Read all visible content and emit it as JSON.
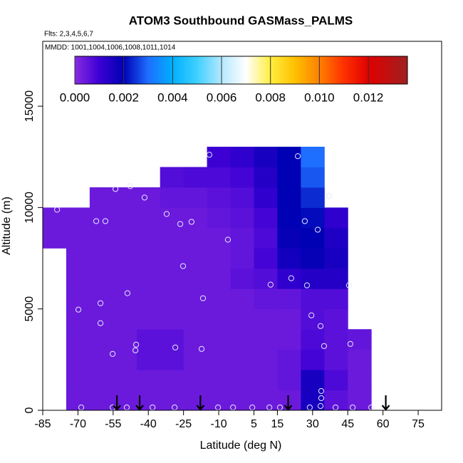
{
  "chart_data": {
    "type": "curtain",
    "title": "ATOM3 Southbound GASMass_PALMS",
    "subtitle": "Flts: 2,3,4,5,6,7",
    "annotation": "MMDD: 1001,1004,1006,1008,1011,1014",
    "x_label": "Latitude (deg N)",
    "y_label": "Altitude (m)",
    "xlim": [
      -85,
      85
    ],
    "ylim": [
      0,
      18200
    ],
    "xticks": [
      -85,
      -70,
      -55,
      -40,
      -25,
      -10,
      5,
      15,
      30,
      45,
      60,
      75
    ],
    "yticks": [
      0,
      5000,
      10000,
      15000
    ],
    "colorbar_lim": [
      0,
      0.0136
    ],
    "colorbar_ticks": [
      {
        "value": 0,
        "label": "0.000"
      },
      {
        "value": 0.002,
        "label": "0.002"
      },
      {
        "value": 0.004,
        "label": "0.004"
      },
      {
        "value": 0.006,
        "label": "0.006"
      },
      {
        "value": 0.008,
        "label": "0.008"
      },
      {
        "value": 0.01,
        "label": "0.010"
      },
      {
        "value": 0.012,
        "label": "0.012"
      }
    ],
    "colorscale": [
      {
        "value": 0,
        "color": "#8a2be2"
      },
      {
        "value": 0.001,
        "color": "#3c00d4"
      },
      {
        "value": 0.002,
        "color": "#0000b4"
      },
      {
        "value": 0.003,
        "color": "#1e6eff"
      },
      {
        "value": 0.004,
        "color": "#00b0ff"
      },
      {
        "value": 0.005,
        "color": "#40d0ff"
      },
      {
        "value": 0.006,
        "color": "#b4e8ff"
      },
      {
        "value": 0.007,
        "color": "#ffffff"
      },
      {
        "value": 0.008,
        "color": "#ffee40"
      },
      {
        "value": 0.009,
        "color": "#ffc000"
      },
      {
        "value": 0.01,
        "color": "#ff8000"
      },
      {
        "value": 0.011,
        "color": "#ff3000"
      },
      {
        "value": 0.012,
        "color": "#e00000"
      },
      {
        "value": 0.0136,
        "color": "#a02020"
      }
    ],
    "field": {
      "lat_edges": [
        -85,
        -75,
        -65,
        -55,
        -45,
        -35,
        -25,
        -15,
        -5,
        5,
        15,
        25,
        35,
        45,
        55
      ],
      "alt_edges": [
        0,
        1000,
        2000,
        3000,
        4000,
        5000,
        6000,
        7000,
        8000,
        9000,
        10000,
        11000,
        12000,
        13000
      ],
      "values": [
        [
          null,
          0.0004,
          0.0004,
          0.0004,
          0.0004,
          0.0004,
          0.0004,
          0.0004,
          0.0004,
          0.0004,
          0.0004,
          0.0016,
          0.0006,
          0.0004
        ],
        [
          null,
          0.0004,
          0.0004,
          0.0004,
          0.0004,
          0.0004,
          0.0004,
          0.0004,
          0.0004,
          0.0004,
          0.0005,
          0.0016,
          0.0008,
          0.0004
        ],
        [
          null,
          0.0004,
          0.0004,
          0.0004,
          0.0006,
          0.0006,
          0.0004,
          0.0004,
          0.0004,
          0.0004,
          0.0005,
          0.0009,
          0.0006,
          0.0004
        ],
        [
          null,
          0.0004,
          0.0004,
          0.0004,
          0.0006,
          0.0006,
          0.0004,
          0.0004,
          0.0004,
          0.0004,
          0.0004,
          0.0008,
          0.0006,
          0.0005
        ],
        [
          null,
          0.0004,
          0.0004,
          0.0004,
          0.0004,
          0.0004,
          0.0004,
          0.0004,
          0.0004,
          0.0004,
          0.0004,
          0.0007,
          0.0006,
          null
        ],
        [
          null,
          0.0004,
          0.0004,
          0.0004,
          0.0004,
          0.0004,
          0.0004,
          0.0004,
          0.0004,
          0.0005,
          0.0005,
          0.0007,
          0.0007,
          null
        ],
        [
          null,
          0.0004,
          0.0004,
          0.0004,
          0.0004,
          0.0004,
          0.0004,
          0.0004,
          0.0006,
          0.0007,
          0.0012,
          0.0014,
          0.0014,
          null
        ],
        [
          null,
          0.0004,
          0.0004,
          0.0004,
          0.0004,
          0.0004,
          0.0004,
          0.0004,
          0.0005,
          0.0009,
          0.0017,
          0.0019,
          0.0016,
          null
        ],
        [
          0.0004,
          0.0004,
          0.0004,
          0.0004,
          0.0004,
          0.0004,
          0.0004,
          0.0004,
          0.0005,
          0.0008,
          0.0019,
          0.002,
          0.0015,
          null
        ],
        [
          0.0004,
          0.0004,
          0.0004,
          0.0004,
          0.0004,
          0.0004,
          0.0004,
          0.0005,
          0.0006,
          0.0009,
          0.002,
          0.0021,
          0.0012,
          null
        ],
        [
          null,
          null,
          0.0004,
          0.0004,
          0.0004,
          0.0005,
          0.0005,
          0.0006,
          0.0007,
          0.0012,
          0.002,
          0.0024,
          null,
          null
        ],
        [
          null,
          null,
          null,
          null,
          null,
          0.0007,
          0.0008,
          0.0008,
          0.0009,
          0.0014,
          0.002,
          0.0028,
          null,
          null
        ],
        [
          null,
          null,
          null,
          null,
          null,
          null,
          null,
          0.001,
          0.0012,
          0.0016,
          0.002,
          0.003,
          null,
          null
        ]
      ]
    },
    "samples": {
      "x": [
        -78.9,
        -62.2,
        -58.3,
        -54.0,
        -47.7,
        -41.6,
        -32.2,
        -26.4,
        -21.6,
        -14.0,
        -6.1,
        23.7,
        26.7,
        32.2,
        37.0,
        -25.2,
        -69.8,
        -60.4,
        -48.9,
        -16.7,
        12.1,
        20.9,
        27.6,
        45.5,
        29.5,
        33.4,
        -60.4,
        -55.2,
        -45.2,
        -45.5,
        -28.5,
        -17.3,
        34.9,
        46.1,
        33.7,
        33.7,
        33.4,
        -68.6,
        -55.2,
        -49.2,
        -38.2,
        -28.8,
        -10.3,
        -3.9,
        4.3,
        11.6,
        16.1,
        28.8,
        39.8,
        47.1,
        55.0
      ],
      "values": [
        9894,
        9331,
        9331,
        10915,
        11056,
        10493,
        9683,
        9190,
        9296,
        12605,
        8415,
        12535,
        9331,
        8908,
        10563,
        7113,
        4965,
        5282,
        5775,
        5528,
        6197,
        6514,
        6162,
        6162,
        4683,
        4155,
        4296,
        2782,
        3239,
        2958,
        3099,
        3028,
        3169,
        3275,
        951,
        599,
        211,
        140,
        140,
        140,
        140,
        140,
        140,
        140,
        140,
        140,
        140,
        140,
        140,
        140,
        140
      ]
    },
    "markers_x": [
      -53.4,
      -43.7,
      -17.8,
      19.6,
      61.2
    ]
  }
}
